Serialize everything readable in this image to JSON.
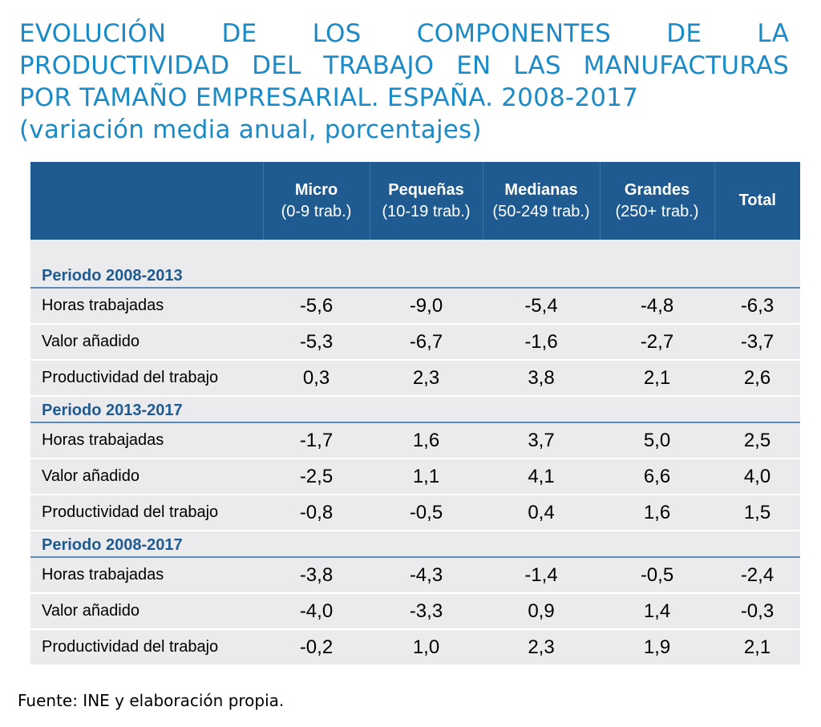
{
  "title": {
    "line1": "EVOLUCIÓN DE LOS COMPONENTES DE LA",
    "line2": "PRODUCTIVIDAD DEL TRABAJO EN LAS MANUFACTURAS",
    "line3": "POR TAMAÑO EMPRESARIAL. ESPAÑA. 2008-2017",
    "subtitle": "(variación media anual, porcentajes)"
  },
  "columns": [
    {
      "name": "Micro",
      "sub": "(0-9 trab.)"
    },
    {
      "name": "Pequeñas",
      "sub": "(10-19 trab.)"
    },
    {
      "name": "Medianas",
      "sub": "(50-249 trab.)"
    },
    {
      "name": "Grandes",
      "sub": "(250+ trab.)"
    },
    {
      "name": "Total",
      "sub": ""
    }
  ],
  "periods": [
    {
      "label": "Periodo 2008-2013",
      "rows": [
        {
          "label": "Horas trabajadas",
          "values": [
            "-5,6",
            "-9,0",
            "-5,4",
            "-4,8",
            "-6,3"
          ]
        },
        {
          "label": "Valor añadido",
          "values": [
            "-5,3",
            "-6,7",
            "-1,6",
            "-2,7",
            "-3,7"
          ]
        },
        {
          "label": "Productividad del trabajo",
          "values": [
            "0,3",
            "2,3",
            "3,8",
            "2,1",
            "2,6"
          ]
        }
      ]
    },
    {
      "label": "Periodo 2013-2017",
      "rows": [
        {
          "label": "Horas trabajadas",
          "values": [
            "-1,7",
            "1,6",
            "3,7",
            "5,0",
            "2,5"
          ]
        },
        {
          "label": "Valor añadido",
          "values": [
            "-2,5",
            "1,1",
            "4,1",
            "6,6",
            "4,0"
          ]
        },
        {
          "label": "Productividad del trabajo",
          "values": [
            "-0,8",
            "-0,5",
            "0,4",
            "1,6",
            "1,5"
          ]
        }
      ]
    },
    {
      "label": "Periodo 2008-2017",
      "rows": [
        {
          "label": "Horas trabajadas",
          "values": [
            "-3,8",
            "-4,3",
            "-1,4",
            "-0,5",
            "-2,4"
          ]
        },
        {
          "label": "Valor añadido",
          "values": [
            "-4,0",
            "-3,3",
            "0,9",
            "1,4",
            "-0,3"
          ]
        },
        {
          "label": "Productividad del trabajo",
          "values": [
            "-0,2",
            "1,0",
            "2,3",
            "1,9",
            "2,1"
          ]
        }
      ]
    }
  ],
  "source": "Fuente: INE y elaboración propia.",
  "colors": {
    "title": "#1a8bc7",
    "header_bg": "#1f5b90",
    "period_text": "#1f5b90",
    "row_bg": "#ebebee"
  }
}
